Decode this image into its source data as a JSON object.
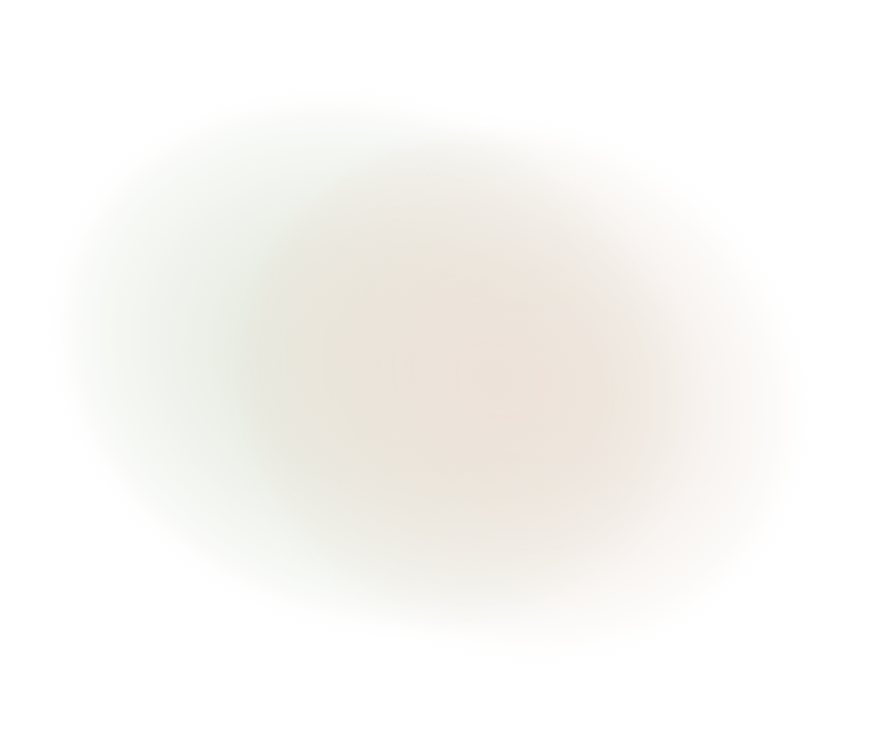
{
  "background": {
    "base_color": "#ffffff",
    "gradient_colors": {
      "green_tint": "#e2e8dc",
      "peach_tint": "#ede2d9",
      "center": "#e4e3d8"
    }
  }
}
